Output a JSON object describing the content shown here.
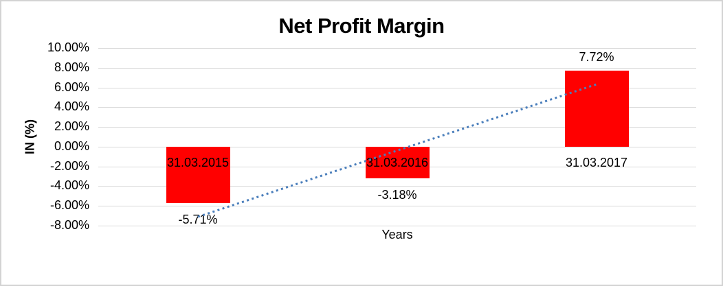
{
  "chart_data": {
    "type": "bar",
    "title": "Net Profit Margin",
    "xlabel": "Years",
    "ylabel": "IN (%)",
    "categories": [
      "31.03.2015",
      "31.03.2016",
      "31.03.2017"
    ],
    "values": [
      -5.71,
      -3.18,
      7.72
    ],
    "value_labels": [
      "-5.71%",
      "-3.18%",
      "7.72%"
    ],
    "ylim": [
      -8,
      10
    ],
    "yticks": [
      10,
      8,
      6,
      4,
      2,
      0,
      -2,
      -4,
      -6,
      -8
    ],
    "ytick_labels": [
      "10.00%",
      "8.00%",
      "6.00%",
      "4.00%",
      "2.00%",
      "0.00%",
      "-2.00%",
      "-4.00%",
      "-6.00%",
      "-8.00%"
    ],
    "grid": true,
    "legend": "none",
    "bar_color": "#ff0000",
    "gridline_color": "#d9d9d9",
    "background_color": "#ffffff",
    "frame_border_color": "#d3d3d3",
    "trendline": {
      "type": "linear",
      "style": "dotted",
      "color": "#4a7ebb"
    }
  }
}
